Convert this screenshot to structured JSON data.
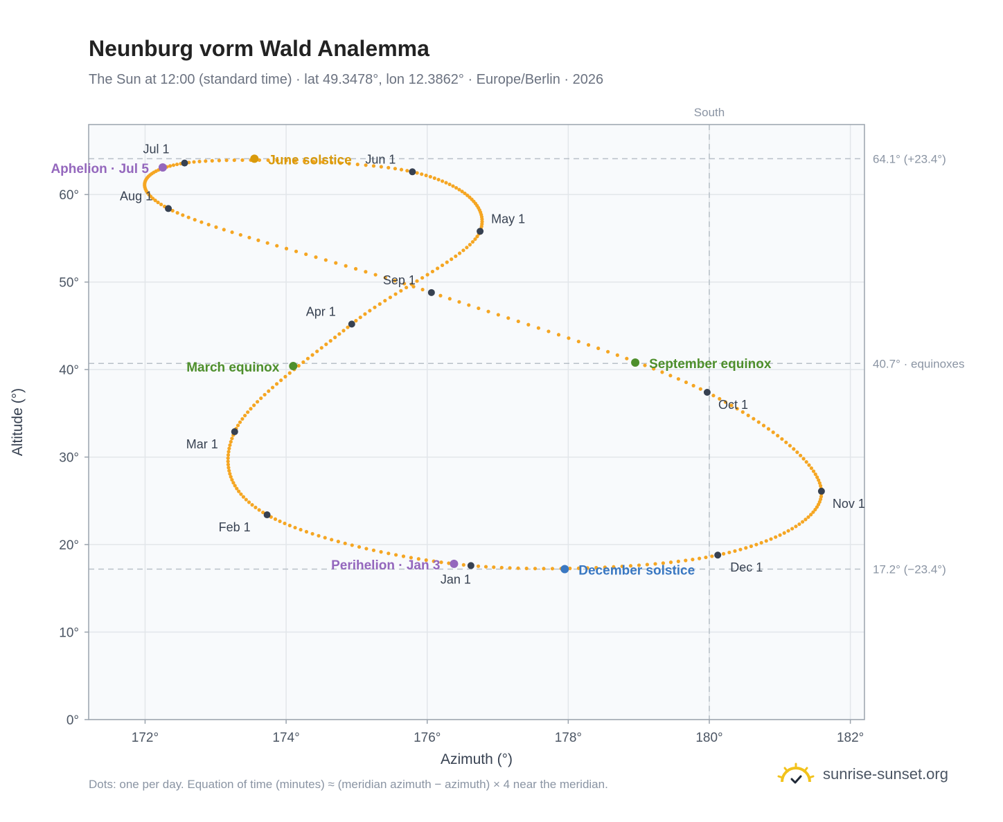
{
  "chart_data": {
    "type": "scatter",
    "title": "Neunburg vorm Wald Analemma",
    "subtitle": "The Sun at 12:00 (standard time) · lat 49.3478°, lon 12.3862° · Europe/Berlin · 2026",
    "xlabel": "Azimuth (°)",
    "ylabel": "Altitude (°)",
    "xlim": [
      171.2,
      182.2
    ],
    "ylim": [
      0,
      68
    ],
    "x_ticks": [
      172,
      174,
      176,
      178,
      180,
      182
    ],
    "x_tick_labels": [
      "172°",
      "174°",
      "176°",
      "178°",
      "180°",
      "182°"
    ],
    "y_ticks": [
      0,
      10,
      20,
      30,
      40,
      50,
      60
    ],
    "y_tick_labels": [
      "0°",
      "10°",
      "20°",
      "30°",
      "40°",
      "50°",
      "60°"
    ],
    "grid": true,
    "meridian": {
      "x": 180,
      "label": "South"
    },
    "reference_lines": [
      {
        "y": 64.1,
        "label": "64.1° (+23.4°)"
      },
      {
        "y": 40.7,
        "label": "40.7° · equinoxes"
      },
      {
        "y": 17.2,
        "label": "17.2° (−23.4°)"
      }
    ],
    "month_markers": [
      {
        "label": "Jan 1",
        "x": 176.62,
        "y": 17.6
      },
      {
        "label": "Feb 1",
        "x": 173.73,
        "y": 23.4
      },
      {
        "label": "Mar 1",
        "x": 173.27,
        "y": 32.9
      },
      {
        "label": "Apr 1",
        "x": 174.93,
        "y": 45.2
      },
      {
        "label": "May 1",
        "x": 176.75,
        "y": 55.8
      },
      {
        "label": "Jun 1",
        "x": 175.79,
        "y": 62.6
      },
      {
        "label": "Jul 1",
        "x": 172.56,
        "y": 63.6
      },
      {
        "label": "Aug 1",
        "x": 172.33,
        "y": 58.4
      },
      {
        "label": "Sep 1",
        "x": 176.06,
        "y": 48.8
      },
      {
        "label": "Oct 1",
        "x": 179.97,
        "y": 37.4
      },
      {
        "label": "Nov 1",
        "x": 181.59,
        "y": 26.1
      },
      {
        "label": "Dec 1",
        "x": 180.12,
        "y": 18.8
      }
    ],
    "events": [
      {
        "label": "Aphelion · Jul 5",
        "x": 172.25,
        "y": 63.1,
        "color": "#9467bd"
      },
      {
        "label": "June solstice",
        "x": 173.55,
        "y": 64.1,
        "color": "#d99a0b"
      },
      {
        "label": "March equinox",
        "x": 174.1,
        "y": 40.4,
        "color": "#4e8f2c"
      },
      {
        "label": "September equinox",
        "x": 178.95,
        "y": 40.8,
        "color": "#4e8f2c"
      },
      {
        "label": "Perihelion · Jan 3",
        "x": 176.38,
        "y": 17.8,
        "color": "#9467bd"
      },
      {
        "label": "December solstice",
        "x": 177.95,
        "y": 17.2,
        "color": "#3a78c2"
      }
    ],
    "series_color": "#f5a623",
    "marker_color": "#374151"
  },
  "footnote": "Dots: one per day. Equation of time (minutes) ≈ (meridian azimuth − azimuth) × 4 near the meridian.",
  "brand": {
    "text": "sunrise-sunset.org",
    "icon": "sun-logo-icon"
  }
}
